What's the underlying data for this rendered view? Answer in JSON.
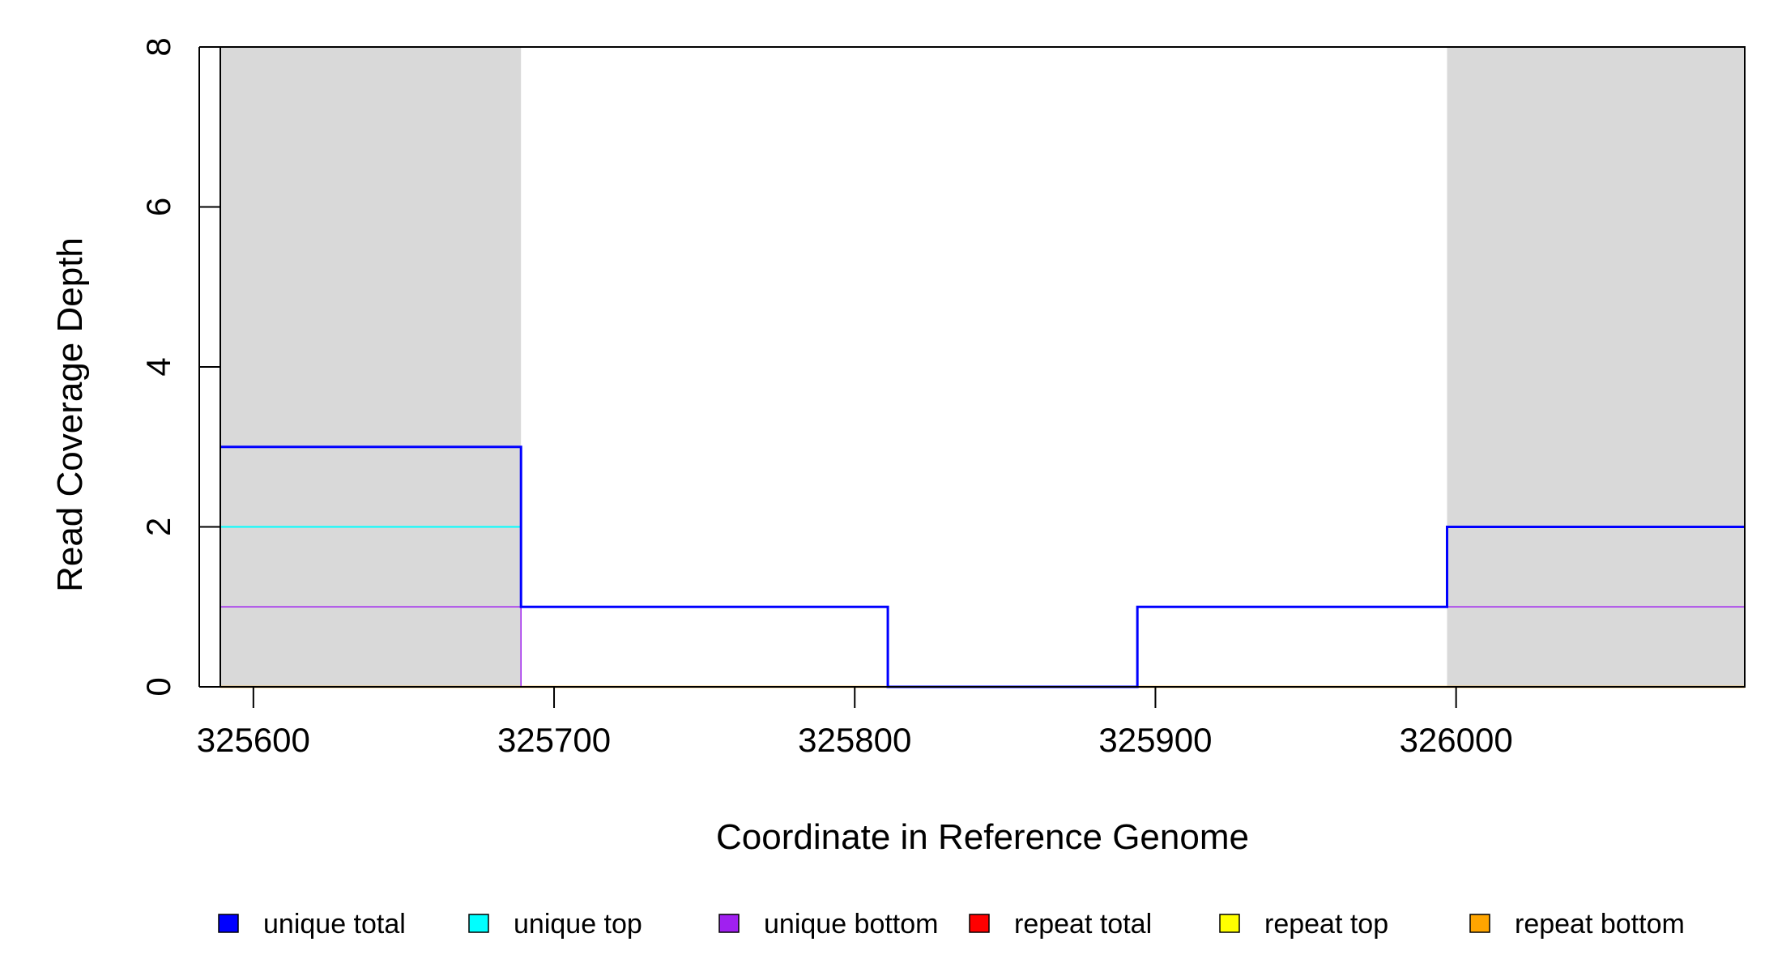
{
  "chart_data": {
    "type": "line",
    "title": "",
    "xlabel": "Coordinate in Reference Genome",
    "ylabel": "Read Coverage Depth",
    "xlim": [
      325589,
      326096
    ],
    "ylim": [
      0,
      8
    ],
    "x_ticks": [
      325600,
      325700,
      325800,
      325900,
      326000
    ],
    "x_tick_labels": [
      "325600",
      "325700",
      "325800",
      "325900",
      "326000"
    ],
    "y_ticks": [
      0,
      2,
      4,
      6,
      8
    ],
    "y_tick_labels": [
      "0",
      "2",
      "4",
      "6",
      "8"
    ],
    "grid": false,
    "shaded_regions": [
      {
        "x0": 325589,
        "x1": 325689
      },
      {
        "x0": 325997,
        "x1": 326096
      }
    ],
    "shade_color": "#d9d9d9",
    "legend_position": "bottom",
    "series": [
      {
        "name": "unique total",
        "color": "#0000ff",
        "steps": [
          [
            325589,
            3
          ],
          [
            325689,
            1
          ],
          [
            325811,
            0
          ],
          [
            325894,
            1
          ],
          [
            325997,
            2
          ],
          [
            326096,
            2
          ]
        ]
      },
      {
        "name": "unique top",
        "color": "#00ffff",
        "steps": [
          [
            325589,
            2
          ],
          [
            325689,
            1
          ],
          [
            325811,
            0
          ],
          [
            325997,
            0
          ],
          [
            326096,
            0
          ]
        ]
      },
      {
        "name": "unique bottom",
        "color": "#a020f0",
        "steps": [
          [
            325589,
            1
          ],
          [
            325689,
            0
          ],
          [
            325894,
            1
          ],
          [
            326096,
            1
          ]
        ]
      },
      {
        "name": "repeat total",
        "color": "#ff0000",
        "steps": [
          [
            325589,
            0
          ],
          [
            326096,
            0
          ]
        ]
      },
      {
        "name": "repeat top",
        "color": "#ffff00",
        "steps": [
          [
            325589,
            0
          ],
          [
            326096,
            0
          ]
        ]
      },
      {
        "name": "repeat bottom",
        "color": "#ffa500",
        "steps": [
          [
            325589,
            0
          ],
          [
            326096,
            0
          ]
        ]
      }
    ]
  }
}
